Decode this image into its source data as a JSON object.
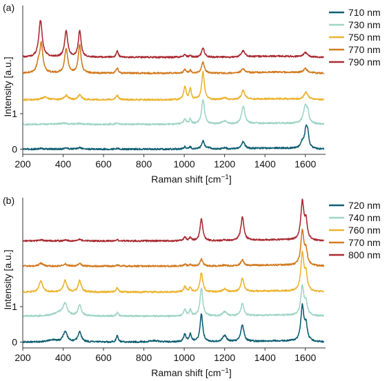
{
  "figure": {
    "colors": {
      "line": "#333333",
      "text": "#111111"
    }
  },
  "chart_data": [
    {
      "panel_label": "(a)",
      "type": "line",
      "xlabel_prefix": "Raman shift [cm",
      "xlabel_sup": "−1",
      "xlabel_suffix": "]",
      "ylabel": "Intensity [a.u.]",
      "xlim": [
        200,
        1700
      ],
      "x_ticks": [
        200,
        400,
        600,
        800,
        1000,
        1200,
        1400,
        1600
      ],
      "y_ticks": [
        0,
        1
      ],
      "ylim": [
        -0.05,
        2.8
      ],
      "legend_position": "right",
      "series": [
        {
          "name": "710 nm",
          "color": "#0e5e72",
          "offset": 0.0,
          "peaks": [
            [
              290,
              0.02,
              14
            ],
            [
              415,
              0.03,
              14
            ],
            [
              482,
              0.04,
              12
            ],
            [
              668,
              0.02,
              8
            ],
            [
              1003,
              0.07,
              7
            ],
            [
              1030,
              0.06,
              6
            ],
            [
              1093,
              0.24,
              8
            ],
            [
              1125,
              0.03,
              10
            ],
            [
              1200,
              0.04,
              10
            ],
            [
              1292,
              0.2,
              10
            ],
            [
              1585,
              0.18,
              10
            ],
            [
              1603,
              0.5,
              8
            ],
            [
              1612,
              0.35,
              6
            ]
          ]
        },
        {
          "name": "730 nm",
          "color": "#9fd5c6",
          "offset": 0.7,
          "peaks": [
            [
              400,
              0.03,
              25
            ],
            [
              482,
              0.02,
              12
            ],
            [
              668,
              0.04,
              8
            ],
            [
              1003,
              0.15,
              7
            ],
            [
              1030,
              0.14,
              6
            ],
            [
              1093,
              0.68,
              9
            ],
            [
              1200,
              0.09,
              15
            ],
            [
              1292,
              0.5,
              10
            ],
            [
              1600,
              0.5,
              12
            ],
            [
              1612,
              0.2,
              6
            ]
          ]
        },
        {
          "name": "750 nm",
          "color": "#ecb32f",
          "offset": 1.39,
          "peaks": [
            [
              310,
              0.08,
              18
            ],
            [
              415,
              0.12,
              12
            ],
            [
              482,
              0.14,
              10
            ],
            [
              668,
              0.12,
              8
            ],
            [
              1003,
              0.38,
              7
            ],
            [
              1030,
              0.3,
              6
            ],
            [
              1093,
              0.78,
              8
            ],
            [
              1200,
              0.05,
              12
            ],
            [
              1292,
              0.25,
              10
            ],
            [
              1603,
              0.2,
              12
            ]
          ]
        },
        {
          "name": "770 nm",
          "color": "#d27a1e",
          "offset": 2.14,
          "peaks": [
            [
              278,
              0.25,
              10
            ],
            [
              292,
              0.78,
              9
            ],
            [
              415,
              0.7,
              9
            ],
            [
              482,
              0.8,
              8
            ],
            [
              668,
              0.15,
              6
            ],
            [
              1003,
              0.1,
              7
            ],
            [
              1030,
              0.08,
              6
            ],
            [
              1093,
              0.32,
              8
            ],
            [
              1292,
              0.12,
              10
            ],
            [
              1600,
              0.12,
              12
            ]
          ]
        },
        {
          "name": "790 nm",
          "color": "#a92a31",
          "offset": 2.59,
          "peaks": [
            [
              288,
              1.05,
              10
            ],
            [
              415,
              0.75,
              9
            ],
            [
              482,
              0.75,
              8
            ],
            [
              668,
              0.17,
              6
            ],
            [
              1003,
              0.07,
              7
            ],
            [
              1030,
              0.05,
              6
            ],
            [
              1093,
              0.27,
              8
            ],
            [
              1292,
              0.17,
              10
            ],
            [
              1600,
              0.12,
              12
            ]
          ]
        }
      ]
    },
    {
      "panel_label": "(b)",
      "type": "line",
      "xlabel_prefix": "Raman shift [cm",
      "xlabel_sup": "−1",
      "xlabel_suffix": "]",
      "ylabel": "Intensity [a.u.]",
      "xlim": [
        200,
        1700
      ],
      "x_ticks": [
        200,
        400,
        600,
        800,
        1000,
        1200,
        1400,
        1600
      ],
      "y_ticks": [
        0,
        1
      ],
      "ylim": [
        -0.05,
        2.9
      ],
      "legend_position": "right",
      "series": [
        {
          "name": "720 nm",
          "color": "#0e5e72",
          "offset": 0.0,
          "peaks": [
            [
              345,
              0.06,
              25
            ],
            [
              410,
              0.3,
              12
            ],
            [
              482,
              0.28,
              10
            ],
            [
              668,
              0.17,
              6
            ],
            [
              850,
              0.04,
              25
            ],
            [
              1003,
              0.22,
              7
            ],
            [
              1030,
              0.22,
              6
            ],
            [
              1085,
              0.78,
              8
            ],
            [
              1200,
              0.18,
              12
            ],
            [
              1288,
              0.48,
              9
            ],
            [
              1585,
              0.98,
              9
            ],
            [
              1603,
              0.42,
              8
            ]
          ]
        },
        {
          "name": "740 nm",
          "color": "#9fd5c6",
          "offset": 0.73,
          "peaks": [
            [
              380,
              0.1,
              30
            ],
            [
              410,
              0.32,
              12
            ],
            [
              482,
              0.3,
              10
            ],
            [
              668,
              0.1,
              6
            ],
            [
              1003,
              0.2,
              7
            ],
            [
              1030,
              0.17,
              6
            ],
            [
              1085,
              0.8,
              8
            ],
            [
              1200,
              0.12,
              12
            ],
            [
              1288,
              0.34,
              9
            ],
            [
              1585,
              0.8,
              9
            ],
            [
              1603,
              0.35,
              8
            ]
          ]
        },
        {
          "name": "760 nm",
          "color": "#ecb32f",
          "offset": 1.41,
          "peaks": [
            [
              290,
              0.32,
              10
            ],
            [
              410,
              0.32,
              10
            ],
            [
              482,
              0.32,
              9
            ],
            [
              668,
              0.12,
              6
            ],
            [
              1003,
              0.15,
              7
            ],
            [
              1030,
              0.13,
              6
            ],
            [
              1085,
              0.55,
              8
            ],
            [
              1200,
              0.08,
              12
            ],
            [
              1288,
              0.38,
              9
            ],
            [
              1585,
              1.05,
              9
            ],
            [
              1603,
              0.45,
              8
            ]
          ]
        },
        {
          "name": "770 nm",
          "color": "#d27a1e",
          "offset": 2.14,
          "peaks": [
            [
              290,
              0.08,
              12
            ],
            [
              410,
              0.06,
              10
            ],
            [
              482,
              0.07,
              9
            ],
            [
              668,
              0.04,
              6
            ],
            [
              1003,
              0.05,
              7
            ],
            [
              1030,
              0.05,
              6
            ],
            [
              1085,
              0.2,
              8
            ],
            [
              1200,
              0.03,
              12
            ],
            [
              1288,
              0.17,
              9
            ],
            [
              1585,
              0.95,
              9
            ],
            [
              1603,
              0.4,
              8
            ]
          ]
        },
        {
          "name": "800 nm",
          "color": "#a92a31",
          "offset": 2.85,
          "peaks": [
            [
              290,
              0.03,
              12
            ],
            [
              410,
              0.03,
              10
            ],
            [
              482,
              0.05,
              9
            ],
            [
              668,
              0.03,
              6
            ],
            [
              1003,
              0.1,
              7
            ],
            [
              1030,
              0.1,
              6
            ],
            [
              1085,
              0.62,
              8
            ],
            [
              1200,
              0.02,
              12
            ],
            [
              1288,
              0.66,
              9
            ],
            [
              1585,
              1.07,
              9
            ],
            [
              1603,
              0.5,
              8
            ]
          ]
        }
      ]
    }
  ]
}
